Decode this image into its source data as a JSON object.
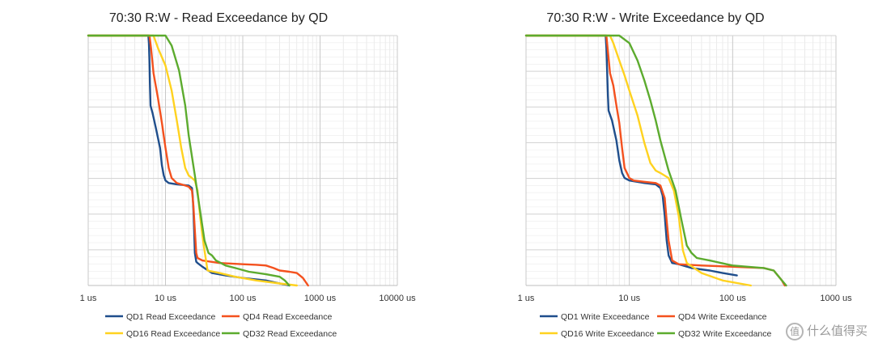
{
  "chart_data": [
    {
      "type": "line",
      "title": "70:30 R:W - Read Exceedance by QD",
      "xscale": "log",
      "xlim": [
        1,
        10000
      ],
      "xticks": [
        1,
        10,
        100,
        1000,
        10000
      ],
      "xtick_labels": [
        "1 us",
        "10 us",
        "100 us",
        "1000 us",
        "10000 us"
      ],
      "ylim": [
        0,
        1
      ],
      "grid": true,
      "legend_position": "bottom",
      "colors": [
        "#1f4e8c",
        "#f4511e",
        "#ffd21f",
        "#5cab2e"
      ],
      "series": [
        {
          "name": "QD1 Read Exceedance",
          "x": [
            1,
            6,
            6.1,
            6.2,
            6.3,
            6.4,
            6.8,
            7.5,
            8.5,
            9.0,
            9.5,
            10,
            11,
            14,
            20,
            22,
            22.5,
            23,
            23.5,
            24,
            25,
            26,
            30,
            40,
            60,
            100,
            200,
            400
          ],
          "y": [
            1,
            1,
            0.97,
            0.9,
            0.8,
            0.72,
            0.69,
            0.63,
            0.55,
            0.48,
            0.44,
            0.42,
            0.41,
            0.405,
            0.4,
            0.39,
            0.36,
            0.3,
            0.22,
            0.13,
            0.095,
            0.09,
            0.075,
            0.05,
            0.04,
            0.03,
            0.02,
            0.0
          ]
        },
        {
          "name": "QD4 Read Exceedance",
          "x": [
            1,
            6.2,
            6.5,
            7,
            8,
            9,
            10,
            11,
            12,
            14,
            18,
            20,
            22,
            23,
            24,
            25,
            26,
            30,
            50,
            100,
            150,
            200,
            250,
            300,
            400,
            500,
            600,
            700
          ],
          "y": [
            1,
            1,
            0.95,
            0.85,
            0.75,
            0.65,
            0.55,
            0.47,
            0.43,
            0.41,
            0.4,
            0.395,
            0.38,
            0.32,
            0.22,
            0.13,
            0.11,
            0.1,
            0.09,
            0.085,
            0.083,
            0.08,
            0.07,
            0.06,
            0.055,
            0.05,
            0.03,
            0.0
          ]
        },
        {
          "name": "QD16 Read Exceedance",
          "x": [
            1,
            7,
            8,
            10,
            12,
            14,
            16,
            18,
            20,
            22,
            24,
            26,
            28,
            30,
            32,
            35,
            50,
            80,
            150,
            300,
            500
          ],
          "y": [
            1,
            1,
            0.95,
            0.88,
            0.78,
            0.66,
            0.55,
            0.47,
            0.44,
            0.43,
            0.42,
            0.38,
            0.28,
            0.2,
            0.14,
            0.06,
            0.05,
            0.035,
            0.02,
            0.008,
            0.0
          ]
        },
        {
          "name": "QD32 Read Exceedance",
          "x": [
            1,
            10,
            12,
            15,
            18,
            20,
            24,
            28,
            32,
            36,
            40,
            45,
            60,
            80,
            120,
            200,
            300,
            350,
            400
          ],
          "y": [
            1,
            1,
            0.96,
            0.86,
            0.72,
            0.6,
            0.44,
            0.3,
            0.18,
            0.13,
            0.12,
            0.1,
            0.08,
            0.07,
            0.055,
            0.045,
            0.035,
            0.02,
            0.0
          ]
        }
      ]
    },
    {
      "type": "line",
      "title": "70:30 R:W - Write Exceedance by QD",
      "xscale": "log",
      "xlim": [
        1,
        1000
      ],
      "xticks": [
        1,
        10,
        100,
        1000
      ],
      "xtick_labels": [
        "1 us",
        "10 us",
        "100 us",
        "1000 us"
      ],
      "ylim": [
        0,
        1
      ],
      "grid": true,
      "legend_position": "bottom",
      "colors": [
        "#1f4e8c",
        "#f4511e",
        "#ffd21f",
        "#5cab2e"
      ],
      "series": [
        {
          "name": "QD1 Write Exceedance",
          "x": [
            1,
            5.9,
            6.0,
            6.1,
            6.2,
            6.3,
            6.8,
            7.5,
            8,
            8.5,
            9,
            10,
            14,
            18,
            20,
            21,
            22,
            23,
            24,
            26,
            30,
            40,
            60,
            80,
            110
          ],
          "y": [
            1,
            1,
            0.95,
            0.85,
            0.76,
            0.7,
            0.66,
            0.58,
            0.5,
            0.45,
            0.43,
            0.42,
            0.41,
            0.405,
            0.39,
            0.36,
            0.28,
            0.18,
            0.12,
            0.09,
            0.085,
            0.07,
            0.06,
            0.05,
            0.04
          ]
        },
        {
          "name": "QD4 Write Exceedance",
          "x": [
            1,
            6.0,
            6.5,
            7,
            7.5,
            8,
            8.5,
            9,
            10,
            11,
            14,
            18,
            20,
            22,
            23,
            24,
            26,
            30,
            50,
            100,
            200,
            250,
            300,
            320
          ],
          "y": [
            1,
            1,
            0.85,
            0.8,
            0.72,
            0.65,
            0.55,
            0.47,
            0.43,
            0.42,
            0.415,
            0.41,
            0.4,
            0.35,
            0.26,
            0.18,
            0.1,
            0.085,
            0.08,
            0.075,
            0.07,
            0.06,
            0.02,
            0.0
          ]
        },
        {
          "name": "QD16 Write Exceedance",
          "x": [
            1,
            6.5,
            7,
            8,
            9,
            10,
            12,
            14,
            16,
            18,
            20,
            24,
            27,
            30,
            33,
            36,
            50,
            80,
            150
          ],
          "y": [
            1,
            1,
            0.97,
            0.9,
            0.84,
            0.78,
            0.68,
            0.57,
            0.49,
            0.46,
            0.45,
            0.43,
            0.38,
            0.28,
            0.14,
            0.09,
            0.05,
            0.02,
            0.0
          ]
        },
        {
          "name": "QD32 Write Exceedance",
          "x": [
            1,
            8,
            10,
            12,
            14,
            16,
            18,
            20,
            24,
            28,
            32,
            36,
            40,
            45,
            60,
            100,
            200,
            250,
            300,
            330
          ],
          "y": [
            1,
            1,
            0.97,
            0.9,
            0.82,
            0.74,
            0.66,
            0.58,
            0.46,
            0.38,
            0.26,
            0.16,
            0.13,
            0.11,
            0.1,
            0.08,
            0.07,
            0.06,
            0.02,
            0.0
          ]
        }
      ]
    }
  ],
  "watermark": {
    "text": "什么值得买",
    "icon": "值"
  }
}
